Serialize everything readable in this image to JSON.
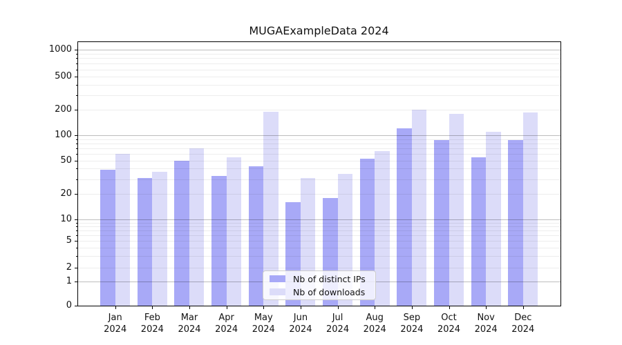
{
  "title": "MUGAExampleData 2024",
  "chart_data": {
    "type": "bar",
    "title": "MUGAExampleData 2024",
    "x_categories": [
      "Jan",
      "Feb",
      "Mar",
      "Apr",
      "May",
      "Jun",
      "Jul",
      "Aug",
      "Sep",
      "Oct",
      "Nov",
      "Dec"
    ],
    "x_year_suffix": "2024",
    "series": [
      {
        "name": "Nb of distinct IPs",
        "color": "#a8a9f7",
        "values": [
          39,
          31,
          50,
          33,
          43,
          16,
          18,
          53,
          120,
          88,
          55,
          88
        ]
      },
      {
        "name": "Nb of downloads",
        "color": "#dcdcf9",
        "values": [
          60,
          37,
          70,
          55,
          190,
          31,
          35,
          65,
          200,
          181,
          110,
          188
        ]
      }
    ],
    "yscale": "symlog",
    "ylim": [
      0,
      1000
    ],
    "yticks": [
      0,
      1,
      2,
      5,
      10,
      20,
      50,
      100,
      200,
      500,
      1000
    ],
    "grid": true,
    "legend_position": "lower center"
  }
}
